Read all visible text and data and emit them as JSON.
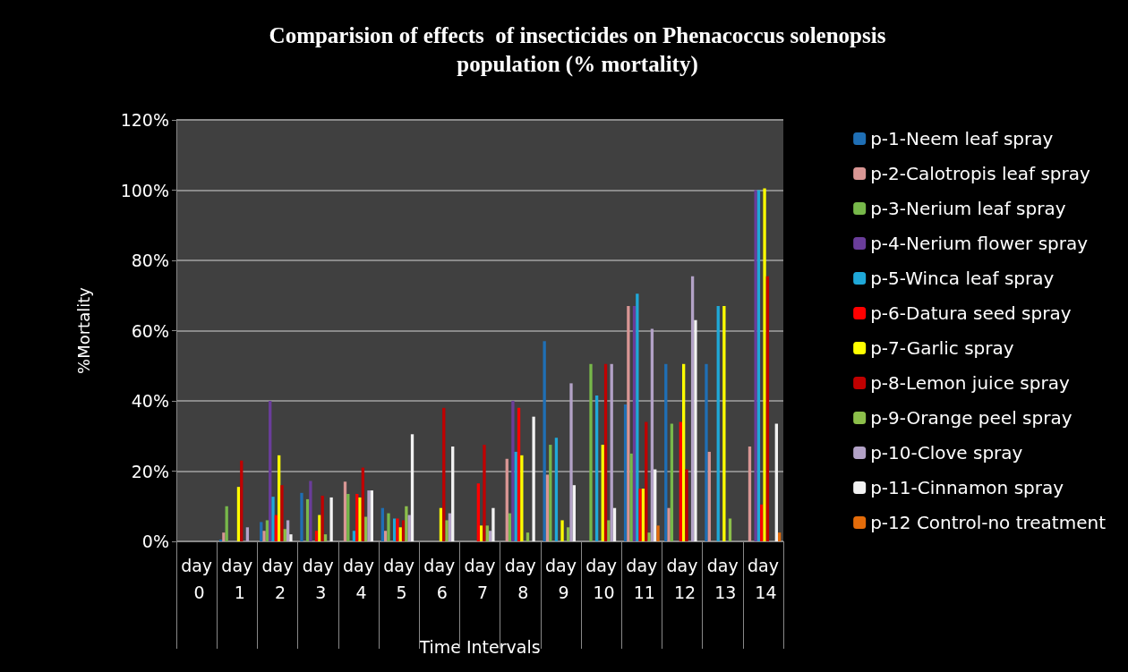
{
  "chart_data": {
    "type": "bar",
    "title": "Comparision of effects  of insecticides on Phenacoccus solenopsis\npopulation (% mortality)",
    "xlabel": "Time Intervals",
    "ylabel": "%Mortality",
    "categories": [
      "day 0",
      "day 1",
      "day 2",
      "day 3",
      "day 4",
      "day 5",
      "day 6",
      "day 7",
      "day 8",
      "day 9",
      "day 10",
      "day 11",
      "day 12",
      "day 13",
      "day 14"
    ],
    "ylim": [
      0,
      120
    ],
    "yticks": [
      {
        "value": 0,
        "label": "0%"
      },
      {
        "value": 20,
        "label": "20%"
      },
      {
        "value": 40,
        "label": "40%"
      },
      {
        "value": 60,
        "label": "60%"
      },
      {
        "value": 80,
        "label": "80%"
      },
      {
        "value": 100,
        "label": "100%"
      },
      {
        "value": 120,
        "label": "120%"
      }
    ],
    "grid": "y",
    "legend": "right",
    "series": [
      {
        "name": "p-1-Neem leaf spray",
        "color": "#1f6fb5",
        "values": [
          0,
          0.5,
          5.5,
          13.8,
          0,
          9.5,
          0,
          0,
          0,
          57,
          0,
          39,
          50.5,
          50.5,
          0
        ]
      },
      {
        "name": "p-2-Calotropis leaf spray",
        "color": "#d99694",
        "values": [
          0,
          2.5,
          3,
          0,
          17,
          3,
          0,
          0,
          23.5,
          19,
          0,
          67,
          9.5,
          25.5,
          27
        ]
      },
      {
        "name": "p-3-Nerium leaf spray",
        "color": "#77b84a",
        "values": [
          0,
          10,
          6,
          12,
          13.5,
          8,
          0,
          0,
          8,
          27.5,
          50.5,
          25,
          33.5,
          0,
          0
        ]
      },
      {
        "name": "p-4-Nerium flower spray",
        "color": "#6a3d9a",
        "values": [
          0,
          0,
          40,
          17.2,
          0,
          0,
          0,
          0,
          40,
          0,
          0,
          67,
          0,
          0,
          100
        ]
      },
      {
        "name": "p-5-Winca leaf spray",
        "color": "#1fa8d8",
        "values": [
          0,
          0,
          12.7,
          0,
          3,
          6.5,
          0,
          0,
          25.5,
          29.5,
          41.5,
          70.5,
          0,
          67,
          100
        ]
      },
      {
        "name": "p-6-Datura seed spray",
        "color": "#ff0000",
        "values": [
          0,
          0,
          7.5,
          3,
          13.5,
          6.5,
          0,
          16.5,
          38,
          0,
          0,
          15,
          34,
          0,
          10.5
        ]
      },
      {
        "name": "p-7-Garlic spray",
        "color": "#ffff00",
        "values": [
          0,
          15.5,
          24.5,
          7.5,
          12.5,
          4,
          9.5,
          4.5,
          24.5,
          6,
          27.5,
          15,
          50.5,
          67,
          100.5
        ]
      },
      {
        "name": "p-8-Lemon juice spray",
        "color": "#c00000",
        "values": [
          0,
          23,
          16,
          13,
          21,
          6,
          38,
          27.5,
          0,
          0,
          50.5,
          34,
          20.5,
          0,
          75.5
        ]
      },
      {
        "name": "p-9-Orange peel spray",
        "color": "#8cbf4a",
        "values": [
          0,
          0,
          3.5,
          2,
          7,
          10,
          6,
          4.5,
          2.5,
          4,
          6,
          2.5,
          0,
          6.5,
          0
        ]
      },
      {
        "name": "p-10-Clove spray",
        "color": "#b3a2c7",
        "values": [
          0,
          4,
          6,
          0,
          14.5,
          7.5,
          8,
          3,
          0,
          45,
          50.5,
          60.5,
          75.5,
          0,
          0
        ]
      },
      {
        "name": "p-11-Cinnamon spray",
        "color": "#f2f2f2",
        "values": [
          0,
          0,
          2,
          12.5,
          14.5,
          30.5,
          27,
          9.5,
          35.5,
          16,
          9.5,
          20.5,
          63,
          0,
          33.5
        ]
      },
      {
        "name": "p-12 Control-no treatment",
        "color": "#e46c0a",
        "values": [
          0,
          0,
          0,
          0,
          0,
          0,
          0,
          0,
          0,
          0,
          0,
          4.5,
          0,
          0,
          2.5
        ]
      }
    ]
  }
}
